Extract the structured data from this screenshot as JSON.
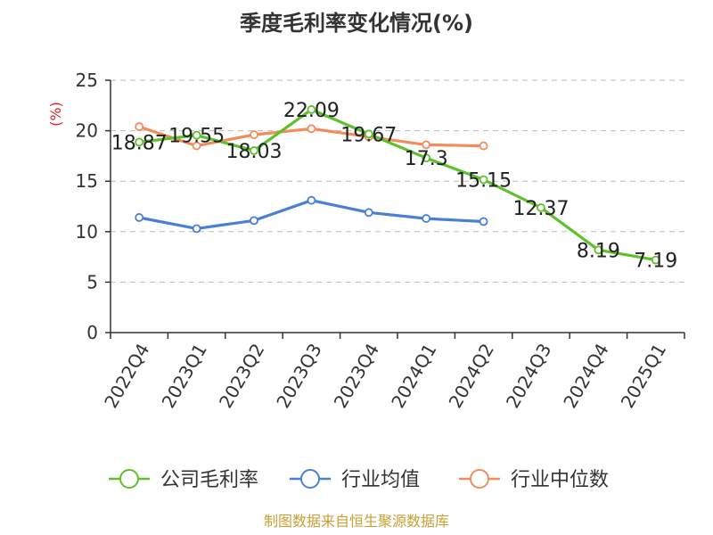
{
  "chart_data": {
    "type": "line",
    "title": "季度毛利率变化情况(%)",
    "ylabel": "(%)",
    "xlabel": "",
    "ylim": [
      0,
      25
    ],
    "yticks": [
      0,
      5,
      10,
      15,
      20,
      25
    ],
    "grid": true,
    "legend_position": "bottom",
    "categories": [
      "2022Q4",
      "2023Q1",
      "2023Q2",
      "2023Q3",
      "2023Q4",
      "2024Q1",
      "2024Q2",
      "2024Q3",
      "2024Q4",
      "2025Q1"
    ],
    "series": [
      {
        "name": "公司毛利率",
        "color": "#5cc12a",
        "values": [
          18.87,
          19.55,
          18.03,
          22.09,
          19.67,
          17.3,
          15.15,
          12.37,
          8.19,
          7.19
        ],
        "labels": [
          "18.87",
          "19.55",
          "18.03",
          "22.09",
          "19.67",
          "17.3",
          "15.15",
          "12.37",
          "8.19",
          "7.19"
        ]
      },
      {
        "name": "行业均值",
        "color": "#4a7fd8",
        "values": [
          11.4,
          10.3,
          11.1,
          13.1,
          11.9,
          11.3,
          11.0,
          null,
          null,
          null
        ]
      },
      {
        "name": "行业中位数",
        "color": "#f28c5a",
        "values": [
          20.4,
          18.5,
          19.6,
          20.2,
          19.4,
          18.6,
          18.5,
          null,
          null,
          null
        ]
      }
    ]
  },
  "footer": {
    "source": "制图数据来自恒生聚源数据库"
  }
}
